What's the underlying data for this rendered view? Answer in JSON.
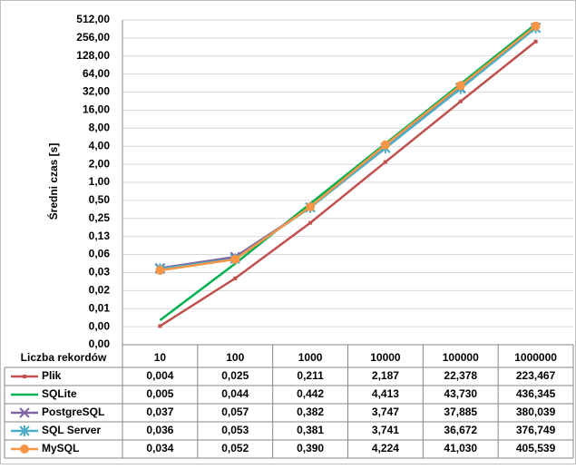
{
  "chart_data": {
    "type": "line",
    "y_label": "Średni czas [s]",
    "x_label": "Liczba rekordów",
    "categories": [
      "10",
      "100",
      "1000",
      "10000",
      "100000",
      "1000000"
    ],
    "log_scale_y": true,
    "log_base": 2,
    "grid": true,
    "ylim": [
      0.001953125,
      512
    ],
    "yticks": [
      {
        "value": 512,
        "label": "512,00"
      },
      {
        "value": 256,
        "label": "256,00"
      },
      {
        "value": 128,
        "label": "128,00"
      },
      {
        "value": 64,
        "label": "64,00"
      },
      {
        "value": 32,
        "label": "32,00"
      },
      {
        "value": 16,
        "label": "16,00"
      },
      {
        "value": 8,
        "label": "8,00"
      },
      {
        "value": 4,
        "label": "4,00"
      },
      {
        "value": 2,
        "label": "2,00"
      },
      {
        "value": 1,
        "label": "1,00"
      },
      {
        "value": 0.5,
        "label": "0,50"
      },
      {
        "value": 0.25,
        "label": "0,25"
      },
      {
        "value": 0.125,
        "label": "0,13"
      },
      {
        "value": 0.0625,
        "label": "0,06"
      },
      {
        "value": 0.03125,
        "label": "0,03"
      },
      {
        "value": 0.015625,
        "label": "0,02"
      },
      {
        "value": 0.0078125,
        "label": "0,01"
      },
      {
        "value": 0.00390625,
        "label": "0,00"
      },
      {
        "value": 0.001953125,
        "label": "0,00"
      }
    ],
    "series": [
      {
        "name": "Plik",
        "color": "#c0504d",
        "marker": "dash",
        "values": [
          0.004,
          0.025,
          0.211,
          2.187,
          22.378,
          223.467
        ],
        "value_labels": [
          "0,004",
          "0,025",
          "0,211",
          "2,187",
          "22,378",
          "223,467"
        ]
      },
      {
        "name": "SQLite",
        "color": "#00b050",
        "marker": "none",
        "values": [
          0.005,
          0.044,
          0.442,
          4.413,
          43.73,
          436.345
        ],
        "value_labels": [
          "0,005",
          "0,044",
          "0,442",
          "4,413",
          "43,730",
          "436,345"
        ]
      },
      {
        "name": "PostgreSQL",
        "color": "#8064a2",
        "marker": "x",
        "values": [
          0.037,
          0.057,
          0.382,
          3.747,
          37.885,
          380.039
        ],
        "value_labels": [
          "0,037",
          "0,057",
          "0,382",
          "3,747",
          "37,885",
          "380,039"
        ]
      },
      {
        "name": "SQL Server",
        "color": "#4bacc6",
        "marker": "star",
        "values": [
          0.036,
          0.053,
          0.381,
          3.741,
          36.672,
          376.749
        ],
        "value_labels": [
          "0,036",
          "0,053",
          "0,381",
          "3,741",
          "36,672",
          "376,749"
        ]
      },
      {
        "name": "MySQL",
        "color": "#f79646",
        "marker": "circle",
        "values": [
          0.034,
          0.052,
          0.39,
          4.224,
          41.03,
          405.539
        ],
        "value_labels": [
          "0,034",
          "0,052",
          "0,390",
          "4,224",
          "41,030",
          "405,539"
        ]
      }
    ]
  }
}
